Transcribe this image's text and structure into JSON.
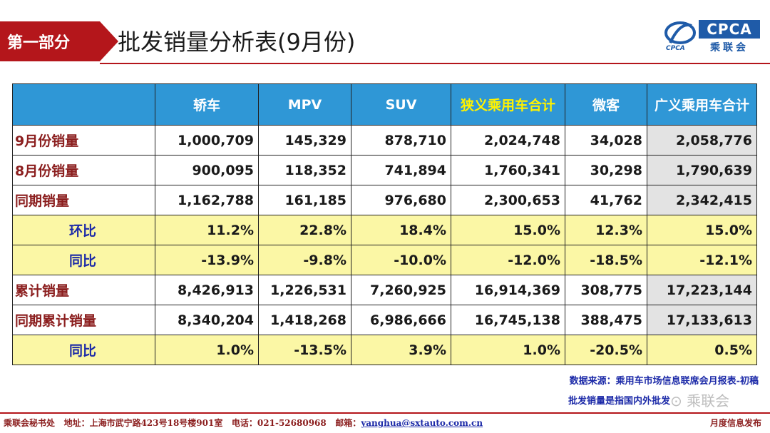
{
  "header": {
    "section_label": "第一部分",
    "title": "批发销量分析表(9月份)",
    "logo_text": "CPCA",
    "logo_sub": "乘联会"
  },
  "table": {
    "columns": [
      "轿车",
      "MPV",
      "SUV",
      "狭义乘用车合计",
      "微客",
      "广义乘用车合计"
    ],
    "rows": [
      {
        "label": "9月份销量",
        "values": [
          "1,000,709",
          "145,329",
          "878,710",
          "2,024,748",
          "34,028",
          "2,058,776"
        ]
      },
      {
        "label": "8月份销量",
        "values": [
          "900,095",
          "118,352",
          "741,894",
          "1,760,341",
          "30,298",
          "1,790,639"
        ]
      },
      {
        "label": "同期销量",
        "values": [
          "1,162,788",
          "161,185",
          "976,680",
          "2,300,653",
          "41,762",
          "2,342,415"
        ]
      },
      {
        "label": "环比",
        "values": [
          "11.2%",
          "22.8%",
          "18.4%",
          "15.0%",
          "12.3%",
          "15.0%"
        ]
      },
      {
        "label": "同比",
        "values": [
          "-13.9%",
          "-9.8%",
          "-10.0%",
          "-12.0%",
          "-18.5%",
          "-12.1%"
        ]
      },
      {
        "label": "累计销量",
        "values": [
          "8,426,913",
          "1,226,531",
          "7,260,925",
          "16,914,369",
          "308,775",
          "17,223,144"
        ]
      },
      {
        "label": "同期累计销量",
        "values": [
          "8,340,204",
          "1,418,268",
          "6,986,666",
          "16,745,138",
          "388,475",
          "17,133,613"
        ]
      },
      {
        "label": "同比",
        "values": [
          "1.0%",
          "-13.5%",
          "3.9%",
          "1.0%",
          "-20.5%",
          "0.5%"
        ]
      }
    ]
  },
  "notes": {
    "source": "数据来源：乘用车市场信息联席会月报表-初稿",
    "definition": "批发销量是指国内外批发"
  },
  "watermark": "乘联会",
  "footer": {
    "org": "乘联会秘书处",
    "address": "地址：上海市武宁路423号18号楼901室",
    "phone": "电话：021-52680968",
    "email_label": "邮箱：",
    "email": "yanghua@sxtauto.com.cn",
    "right_label": "月度信息发布"
  },
  "colors": {
    "brand_red": "#b4161b",
    "header_blue": "#2f97d6",
    "highlight_yellow": "#fbf7a5",
    "logo_blue": "#1f5ba8"
  }
}
